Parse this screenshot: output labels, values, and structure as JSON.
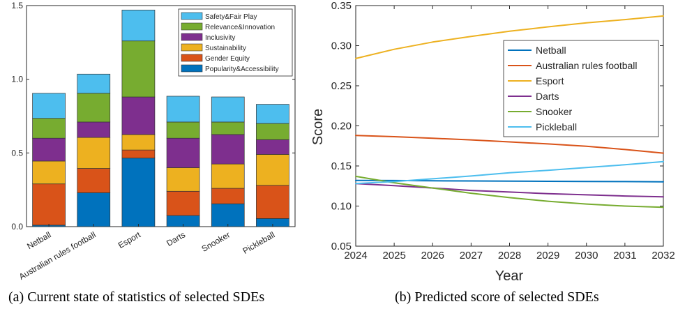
{
  "chart_data": [
    {
      "type": "bar",
      "stacked": true,
      "caption": "(a) Current state of statistics of selected  SDEs",
      "categories": [
        "Netball",
        "Australian rules football",
        "Esport",
        "Darts",
        "Snooker",
        "Pickleball"
      ],
      "series": [
        {
          "name": "Popularity&Accessibility",
          "color": "#0072BD",
          "values": [
            0.01,
            0.23,
            0.465,
            0.075,
            0.155,
            0.055
          ]
        },
        {
          "name": "Gender Equity",
          "color": "#D95319",
          "values": [
            0.28,
            0.165,
            0.055,
            0.165,
            0.105,
            0.225
          ]
        },
        {
          "name": "Sustainability",
          "color": "#EDB120",
          "values": [
            0.155,
            0.21,
            0.105,
            0.16,
            0.165,
            0.21
          ]
        },
        {
          "name": "Inclusivity",
          "color": "#7E2F8E",
          "values": [
            0.155,
            0.105,
            0.255,
            0.2,
            0.2,
            0.1
          ]
        },
        {
          "name": "Relevance&Innovation",
          "color": "#77AC30",
          "values": [
            0.135,
            0.195,
            0.38,
            0.11,
            0.085,
            0.11
          ]
        },
        {
          "name": "Safety&Fair Play",
          "color": "#4DBEEE",
          "values": [
            0.17,
            0.13,
            0.21,
            0.175,
            0.17,
            0.13
          ]
        }
      ],
      "legend_order": [
        "Safety&Fair Play",
        "Relevance&Innovation",
        "Inclusivity",
        "Sustainability",
        "Gender Equity",
        "Popularity&Accessibility"
      ],
      "ylim": [
        0,
        1.5
      ],
      "yticks": [
        "0.0",
        "0.5",
        "1.0",
        "1.5"
      ],
      "legend_placement": "top-right"
    },
    {
      "type": "line",
      "caption": "(b) Predicted score of selected SDEs",
      "xlabel": "Year",
      "ylabel": "Score",
      "x": [
        2024,
        2025,
        2026,
        2027,
        2028,
        2029,
        2030,
        2031,
        2032
      ],
      "xlim": [
        2024,
        2032
      ],
      "ylim": [
        0.05,
        0.35
      ],
      "yticks": [
        "0.05",
        "0.10",
        "0.15",
        "0.20",
        "0.25",
        "0.30",
        "0.35"
      ],
      "xticks": [
        "2024",
        "2025",
        "2026",
        "2027",
        "2028",
        "2029",
        "2030",
        "2031",
        "2032"
      ],
      "series": [
        {
          "name": "Netball",
          "color": "#0072BD",
          "values": [
            0.132,
            0.1318,
            0.1315,
            0.1313,
            0.1311,
            0.1309,
            0.1307,
            0.1305,
            0.1303
          ]
        },
        {
          "name": "Australian rules football",
          "color": "#D95319",
          "values": [
            0.188,
            0.1865,
            0.1845,
            0.1825,
            0.18,
            0.1775,
            0.1745,
            0.1705,
            0.166
          ]
        },
        {
          "name": "Esport",
          "color": "#EDB120",
          "values": [
            0.284,
            0.2955,
            0.3045,
            0.3115,
            0.318,
            0.3235,
            0.3285,
            0.3325,
            0.337
          ]
        },
        {
          "name": "Darts",
          "color": "#7E2F8E",
          "values": [
            0.128,
            0.1255,
            0.1225,
            0.1195,
            0.1175,
            0.1155,
            0.114,
            0.1125,
            0.1115
          ]
        },
        {
          "name": "Snooker",
          "color": "#77AC30",
          "values": [
            0.137,
            0.129,
            0.1225,
            0.116,
            0.1105,
            0.106,
            0.1025,
            0.1,
            0.0985
          ]
        },
        {
          "name": "Pickleball",
          "color": "#4DBEEE",
          "values": [
            0.128,
            0.1305,
            0.134,
            0.1375,
            0.1415,
            0.1445,
            0.148,
            0.1515,
            0.1555
          ]
        }
      ],
      "legend_placement": "top-right"
    }
  ]
}
